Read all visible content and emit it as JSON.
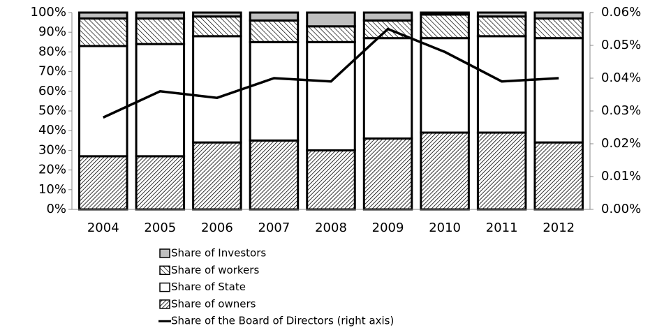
{
  "chart_data": {
    "type": "bar",
    "stacked": true,
    "categories": [
      "2004",
      "2005",
      "2006",
      "2007",
      "2008",
      "2009",
      "2010",
      "2011",
      "2012"
    ],
    "series": [
      {
        "name": "Share of Investors",
        "color": "#bfbfbf",
        "values": [
          3,
          3,
          2,
          4,
          7,
          4,
          1,
          2,
          3
        ]
      },
      {
        "name": "Share of workers",
        "color": "#ffffff",
        "hatch": "backward",
        "values": [
          14,
          13,
          10,
          11,
          8,
          9,
          12,
          10,
          10
        ]
      },
      {
        "name": "Share of State",
        "color": "#ffffff",
        "values": [
          56,
          57,
          54,
          50,
          55,
          51,
          48,
          49,
          53
        ]
      },
      {
        "name": "Share of owners",
        "color": "#ffffff",
        "hatch": "forward",
        "values": [
          27,
          27,
          34,
          35,
          30,
          36,
          39,
          39,
          34
        ]
      },
      {
        "name": "Share of the Board of Directors (right axis)",
        "type": "line",
        "axis": "y2",
        "color": "#000000",
        "values": [
          0.028,
          0.036,
          0.034,
          0.04,
          0.039,
          0.055,
          0.048,
          0.039,
          0.04
        ]
      }
    ],
    "ylim": [
      0,
      100
    ],
    "yticks": [
      {
        "value": 0,
        "label": "0%"
      },
      {
        "value": 10,
        "label": "10%"
      },
      {
        "value": 20,
        "label": "20%"
      },
      {
        "value": 30,
        "label": "30%"
      },
      {
        "value": 40,
        "label": "40%"
      },
      {
        "value": 50,
        "label": "50%"
      },
      {
        "value": 60,
        "label": "60%"
      },
      {
        "value": 70,
        "label": "70%"
      },
      {
        "value": 80,
        "label": "80%"
      },
      {
        "value": 90,
        "label": "90%"
      },
      {
        "value": 100,
        "label": "100%"
      }
    ],
    "y2lim": [
      0,
      0.06
    ],
    "y2ticks": [
      {
        "value": 0,
        "label": "0.00%"
      },
      {
        "value": 0.01,
        "label": "0.01%"
      },
      {
        "value": 0.02,
        "label": "0.02%"
      },
      {
        "value": 0.03,
        "label": "0.03%"
      },
      {
        "value": 0.04,
        "label": "0.04%"
      },
      {
        "value": 0.05,
        "label": "0.05%"
      },
      {
        "value": 0.06,
        "label": "0.06%"
      }
    ],
    "legend": "bottom"
  }
}
